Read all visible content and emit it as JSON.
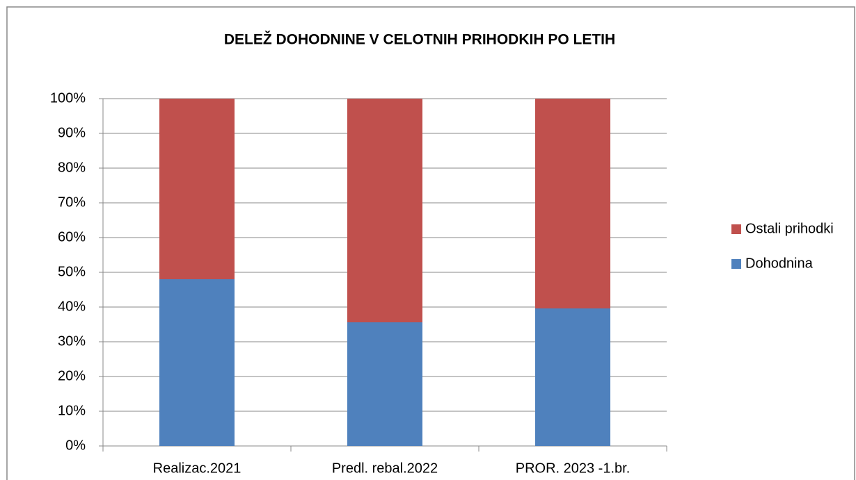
{
  "chart_data": {
    "type": "stacked_bar",
    "title": "DELEŽ DOHODNINE V CELOTNIH PRIHODKIH PO LETIH",
    "categories": [
      "Realizac.2021",
      "Predl. rebal.2022",
      "PROR. 2023 -1.br."
    ],
    "series": [
      {
        "name": "Dohodnina",
        "color": "#4f81bd",
        "values": [
          48,
          35.6,
          39.6
        ]
      },
      {
        "name": "Ostali prihodki",
        "color": "#c0504d",
        "values": [
          52,
          64.4,
          60.4
        ]
      }
    ],
    "ylim": [
      0,
      100
    ],
    "yticks": [
      {
        "value": 0,
        "label": "0%"
      },
      {
        "value": 10,
        "label": "10%"
      },
      {
        "value": 20,
        "label": "20%"
      },
      {
        "value": 30,
        "label": "30%"
      },
      {
        "value": 40,
        "label": "40%"
      },
      {
        "value": 50,
        "label": "50%"
      },
      {
        "value": 60,
        "label": "60%"
      },
      {
        "value": 70,
        "label": "70%"
      },
      {
        "value": 80,
        "label": "80%"
      },
      {
        "value": 90,
        "label": "90%"
      },
      {
        "value": 100,
        "label": "100%"
      }
    ],
    "grid": true,
    "legend": "right"
  }
}
